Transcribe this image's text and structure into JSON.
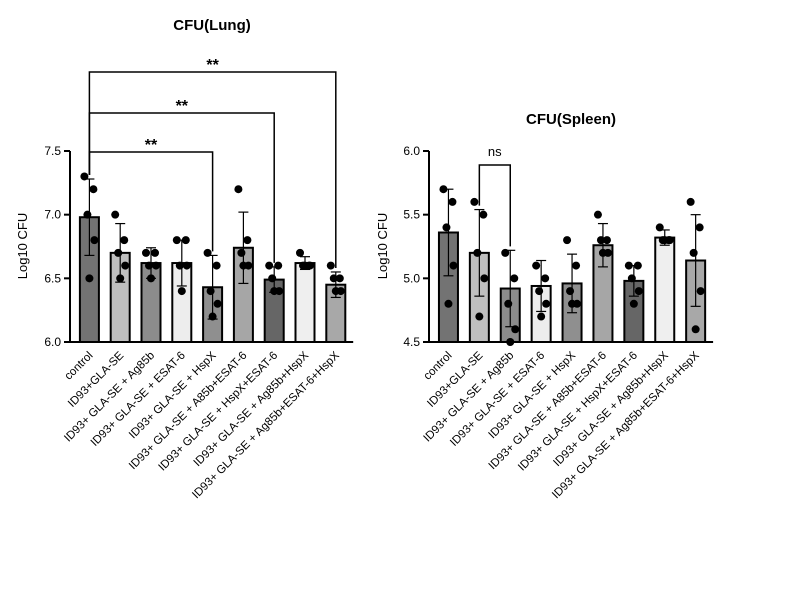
{
  "chart_data": [
    {
      "type": "bar",
      "title": "CFU(Lung)",
      "xlabel": "",
      "ylabel": "Log10 CFU",
      "ylim": [
        6.0,
        7.5
      ],
      "yticks": [
        "6.0",
        "6.5",
        "7.0",
        "7.5"
      ],
      "categories": [
        "control",
        "ID93+GLA-SE",
        "ID93+ GLA-SE + Ag85b",
        "ID93+ GLA-SE + ESAT-6",
        "ID93+ GLA-SE + HspX",
        "ID93+ GLA-SE + A85b+ESAT-6",
        "ID93+ GLA-SE + HspX+ESAT-6",
        "ID93+ GLA-SE + Ag85b+HspX",
        "ID93+ GLA-SE + Ag85b+ESAT-6+HspX"
      ],
      "values": [
        6.98,
        6.7,
        6.62,
        6.62,
        6.43,
        6.74,
        6.49,
        6.62,
        6.45
      ],
      "sd": [
        0.3,
        0.23,
        0.12,
        0.18,
        0.25,
        0.28,
        0.1,
        0.05,
        0.1
      ],
      "points": [
        [
          7.3,
          7.2,
          7.0,
          6.8,
          6.5
        ],
        [
          7.0,
          6.8,
          6.7,
          6.6,
          6.5
        ],
        [
          6.7,
          6.7,
          6.6,
          6.6,
          6.5
        ],
        [
          6.8,
          6.8,
          6.6,
          6.6,
          6.4
        ],
        [
          6.7,
          6.6,
          6.4,
          6.3,
          6.2
        ],
        [
          7.2,
          6.8,
          6.7,
          6.6,
          6.6
        ],
        [
          6.6,
          6.6,
          6.5,
          6.4,
          6.4
        ],
        [
          6.7,
          6.6,
          6.6,
          6.6,
          6.6
        ],
        [
          6.6,
          6.5,
          6.5,
          6.4,
          6.4
        ]
      ],
      "bar_colors": [
        "#737373",
        "#bfbfbf",
        "#8c8c8c",
        "#ededed",
        "#8f8f8f",
        "#a6a6a6",
        "#666666",
        "#efefef",
        "#a8a8a8"
      ],
      "annotations": [
        {
          "from": 0,
          "to": 4,
          "label": "**"
        },
        {
          "from": 0,
          "to": 6,
          "label": "**"
        },
        {
          "from": 0,
          "to": 8,
          "label": "**"
        }
      ]
    },
    {
      "type": "bar",
      "title": "CFU(Spleen)",
      "xlabel": "",
      "ylabel": "Log10 CFU",
      "ylim": [
        4.5,
        6.0
      ],
      "yticks": [
        "4.5",
        "5.0",
        "5.5",
        "6.0"
      ],
      "categories": [
        "control",
        "ID93+GLA-SE",
        "ID93+ GLA-SE + Ag85b",
        "ID93+ GLA-SE + ESAT-6",
        "ID93+ GLA-SE + HspX",
        "ID93+ GLA-SE + A85b+ESAT-6",
        "ID93+ GLA-SE + HspX+ESAT-6",
        "ID93+ GLA-SE + Ag85b+HspX",
        "ID93+ GLA-SE + Ag85b+ESAT-6+HspX"
      ],
      "values": [
        5.36,
        5.2,
        4.92,
        4.94,
        4.96,
        5.26,
        4.98,
        5.32,
        5.14
      ],
      "sd": [
        0.34,
        0.34,
        0.3,
        0.2,
        0.23,
        0.17,
        0.12,
        0.06,
        0.36
      ],
      "points": [
        [
          5.7,
          5.6,
          5.4,
          5.1,
          4.8
        ],
        [
          5.6,
          5.5,
          5.2,
          5.0,
          4.7
        ],
        [
          5.2,
          5.0,
          4.8,
          4.6,
          4.5
        ],
        [
          5.1,
          5.0,
          4.9,
          4.8,
          4.7
        ],
        [
          5.3,
          5.1,
          4.9,
          4.8,
          4.8
        ],
        [
          5.5,
          5.3,
          5.3,
          5.2,
          5.2
        ],
        [
          5.1,
          5.1,
          5.0,
          4.9,
          4.8
        ],
        [
          5.4,
          5.3,
          5.3,
          5.3,
          5.3
        ],
        [
          5.6,
          5.4,
          5.2,
          4.9,
          4.6
        ]
      ],
      "bar_colors": [
        "#737373",
        "#bfbfbf",
        "#8c8c8c",
        "#ededed",
        "#8f8f8f",
        "#a6a6a6",
        "#666666",
        "#efefef",
        "#a8a8a8"
      ],
      "annotations": [
        {
          "from": 1,
          "to": 2,
          "label": "ns"
        }
      ]
    }
  ]
}
